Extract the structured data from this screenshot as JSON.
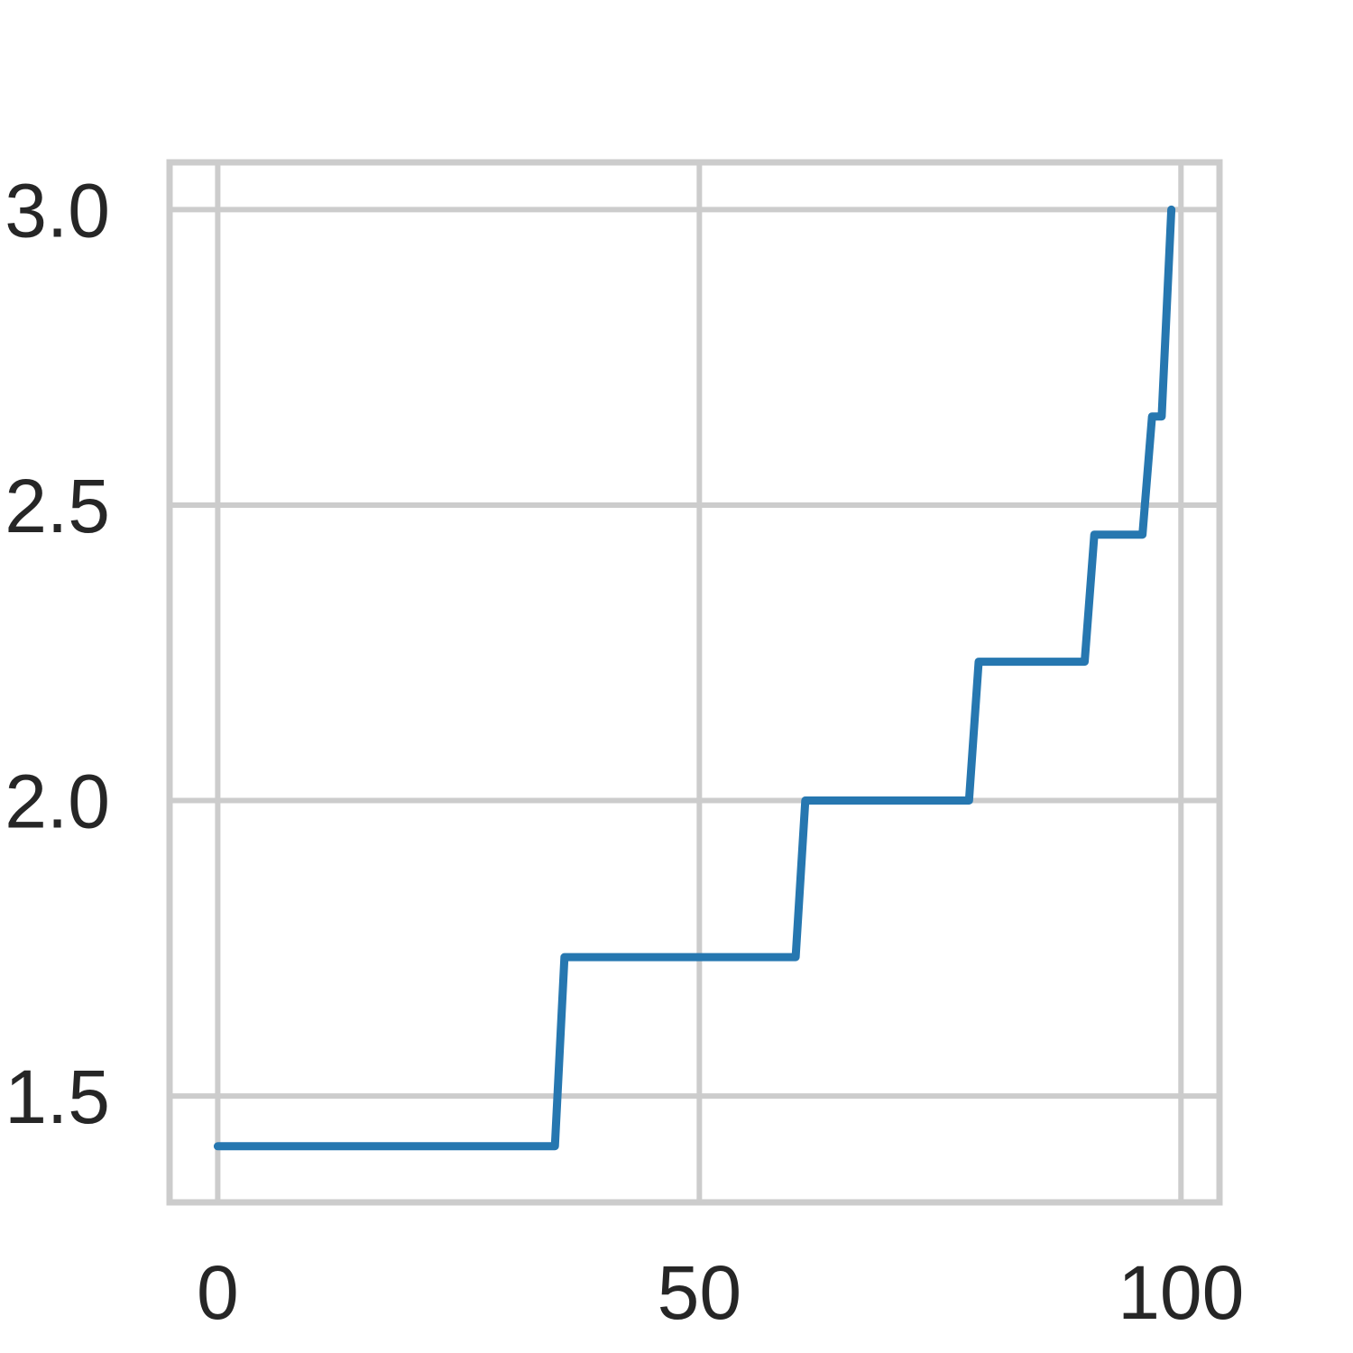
{
  "chart_data": {
    "type": "line",
    "title": "",
    "xlabel": "",
    "ylabel": "",
    "xlim": [
      -5,
      104
    ],
    "ylim": [
      1.32,
      3.08
    ],
    "grid": true,
    "x_ticks": [
      0,
      50,
      100
    ],
    "x_tick_labels": [
      "0",
      "50",
      "100"
    ],
    "y_ticks": [
      1.5,
      2.0,
      2.5,
      3.0
    ],
    "y_tick_labels": [
      "1.5",
      "2.0",
      "2.5",
      "3.0"
    ],
    "series": [
      {
        "color": "#2677b0",
        "x": [
          0,
          35,
          36,
          60,
          61,
          78,
          79,
          90,
          91,
          96,
          97,
          98,
          99
        ],
        "y": [
          1.415,
          1.415,
          1.735,
          1.735,
          2.0,
          2.0,
          2.235,
          2.235,
          2.45,
          2.45,
          2.65,
          2.65,
          3.0
        ]
      }
    ]
  }
}
